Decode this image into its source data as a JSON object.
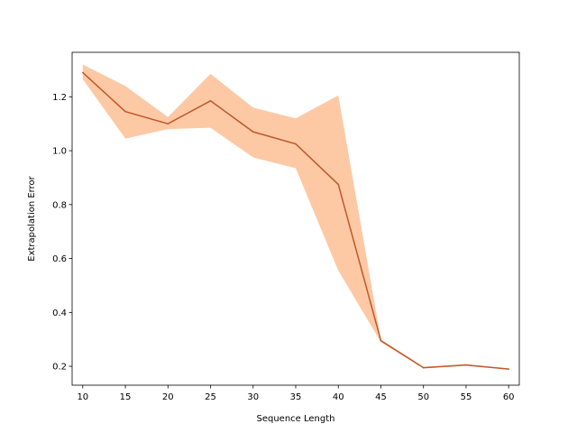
{
  "chart_data": {
    "type": "line",
    "title": "",
    "xlabel": "Sequence Length",
    "ylabel": "Extrapolation Error",
    "x": [
      10,
      15,
      20,
      25,
      30,
      35,
      40,
      45,
      50,
      55,
      60
    ],
    "xticks": [
      "10",
      "15",
      "20",
      "25",
      "30",
      "35",
      "40",
      "45",
      "50",
      "55",
      "60"
    ],
    "yticks": [
      "0.2",
      "0.4",
      "0.6",
      "0.8",
      "1.0",
      "1.2"
    ],
    "xlim": [
      8.75,
      61.25
    ],
    "ylim": [
      0.13,
      1.365
    ],
    "grid": false,
    "series": [
      {
        "values": [
          1.29,
          1.145,
          1.1,
          1.185,
          1.07,
          1.025,
          0.875,
          0.295,
          0.195,
          0.205,
          0.19
        ],
        "lower": [
          1.265,
          1.045,
          1.08,
          1.085,
          0.975,
          0.935,
          0.555,
          0.29,
          0.192,
          0.202,
          0.188
        ],
        "upper": [
          1.32,
          1.24,
          1.125,
          1.285,
          1.16,
          1.12,
          1.205,
          0.3,
          0.198,
          0.208,
          0.192
        ],
        "line_color": "#c0582a",
        "band_color": "#fdbf95"
      }
    ]
  }
}
